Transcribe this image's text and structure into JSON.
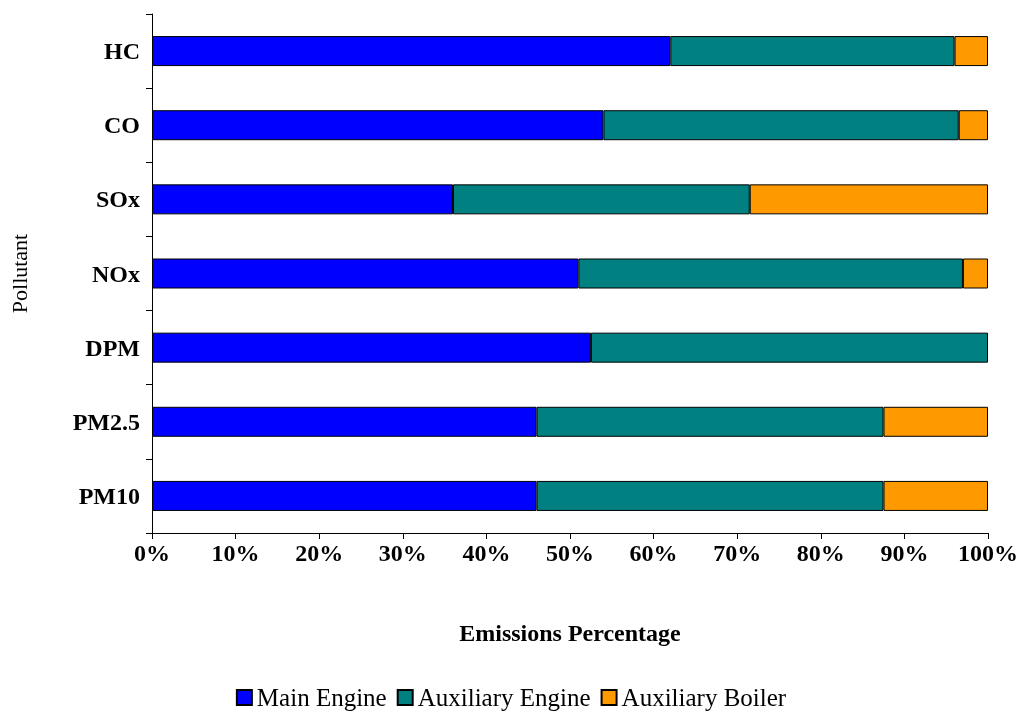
{
  "chart_data": {
    "type": "bar",
    "orientation": "horizontal",
    "stacked": true,
    "categories": [
      "HC",
      "CO",
      "SOx",
      "NOx",
      "DPM",
      "PM2.5",
      "PM10"
    ],
    "series": [
      {
        "name": "Main Engine",
        "color": "#0000ff",
        "values": [
          62,
          54,
          36,
          51,
          52.5,
          46,
          46
        ]
      },
      {
        "name": "Auxiliary Engine",
        "color": "#008080",
        "values": [
          34,
          42.5,
          35.5,
          46,
          47.5,
          41.5,
          41.5
        ]
      },
      {
        "name": "Auxiliary Boiler",
        "color": "#ff9900",
        "values": [
          4,
          3.5,
          28.5,
          3,
          0,
          12.5,
          12.5
        ]
      }
    ],
    "xlabel": "Emissions Percentage",
    "ylabel": "Pollutant",
    "xlim": [
      0,
      100
    ],
    "xticks": [
      {
        "value": 0,
        "label": "0%"
      },
      {
        "value": 10,
        "label": "10%"
      },
      {
        "value": 20,
        "label": "20%"
      },
      {
        "value": 30,
        "label": "30%"
      },
      {
        "value": 40,
        "label": "40%"
      },
      {
        "value": 50,
        "label": "50%"
      },
      {
        "value": 60,
        "label": "60%"
      },
      {
        "value": 70,
        "label": "70%"
      },
      {
        "value": 80,
        "label": "80%"
      },
      {
        "value": 90,
        "label": "90%"
      },
      {
        "value": 100,
        "label": "100%"
      }
    ],
    "grid": false,
    "legend": "bottom"
  }
}
